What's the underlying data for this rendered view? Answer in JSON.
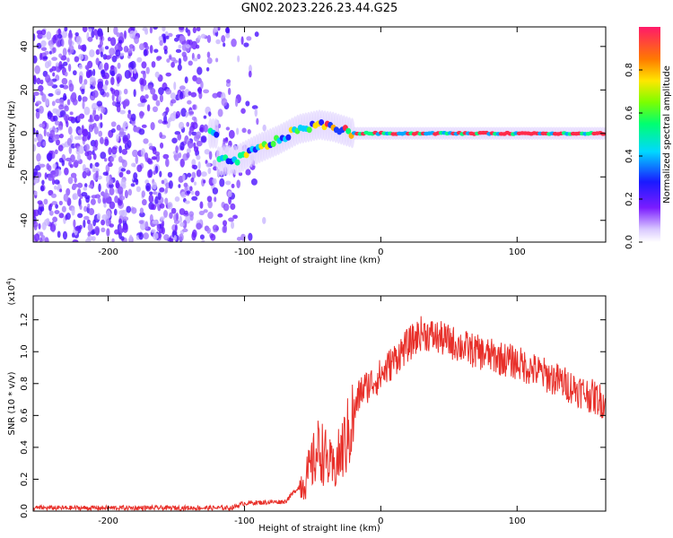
{
  "title": "GN02.2023.226.23.44.G25",
  "colors": {
    "snr_line": "#e8302a",
    "spec_low": "#6a00ff",
    "spec_high": "#ff1a40"
  },
  "chart_data": [
    {
      "type": "heatmap",
      "name": "spectrogram",
      "xlabel": "Height of straight line (km)",
      "ylabel": "Frequency (Hz)",
      "xlim": [
        -255,
        165
      ],
      "ylim": [
        -50,
        49
      ],
      "xticks": [
        -200,
        -100,
        0,
        100
      ],
      "yticks": [
        -40,
        -20,
        0,
        20,
        40
      ],
      "colorbar": {
        "label": "Normalized spectral amplitude",
        "ticks": [
          "0.0",
          "0.2",
          "0.4",
          "0.6",
          "0.8"
        ],
        "range": [
          0,
          1
        ],
        "palette": "rainbow"
      },
      "ridge": {
        "description_points": [
          {
            "x": -120,
            "y": -13
          },
          {
            "x": -105,
            "y": -12
          },
          {
            "x": -90,
            "y": -7
          },
          {
            "x": -75,
            "y": -3
          },
          {
            "x": -60,
            "y": 2
          },
          {
            "x": -45,
            "y": 4
          },
          {
            "x": -35,
            "y": 3
          },
          {
            "x": -20,
            "y": 0
          },
          {
            "x": 165,
            "y": 0
          }
        ]
      }
    },
    {
      "type": "line",
      "name": "snr",
      "xlabel": "Height of straight line (km)",
      "ylabel": "SNR (10 * v/v)",
      "yscale_label": "(x10",
      "yscale_exp": "4",
      "yscale_close": ")",
      "xlim": [
        -255,
        165
      ],
      "ylim": [
        0,
        1.35
      ],
      "xticks": [
        -200,
        -100,
        0,
        100
      ],
      "yticks": [
        "0.0",
        "0.2",
        "0.4",
        "0.6",
        "0.8",
        "1.0",
        "1.2"
      ],
      "envelope": [
        {
          "x": -255,
          "y": 0.02
        },
        {
          "x": -110,
          "y": 0.02
        },
        {
          "x": -100,
          "y": 0.05
        },
        {
          "x": -70,
          "y": 0.06
        },
        {
          "x": -55,
          "y": 0.2
        },
        {
          "x": -45,
          "y": 0.4
        },
        {
          "x": -35,
          "y": 0.25
        },
        {
          "x": -25,
          "y": 0.45
        },
        {
          "x": -15,
          "y": 0.75
        },
        {
          "x": 0,
          "y": 0.85
        },
        {
          "x": 15,
          "y": 1.0
        },
        {
          "x": 30,
          "y": 1.12
        },
        {
          "x": 45,
          "y": 1.08
        },
        {
          "x": 70,
          "y": 1.0
        },
        {
          "x": 100,
          "y": 0.93
        },
        {
          "x": 130,
          "y": 0.82
        },
        {
          "x": 165,
          "y": 0.68
        }
      ]
    }
  ]
}
